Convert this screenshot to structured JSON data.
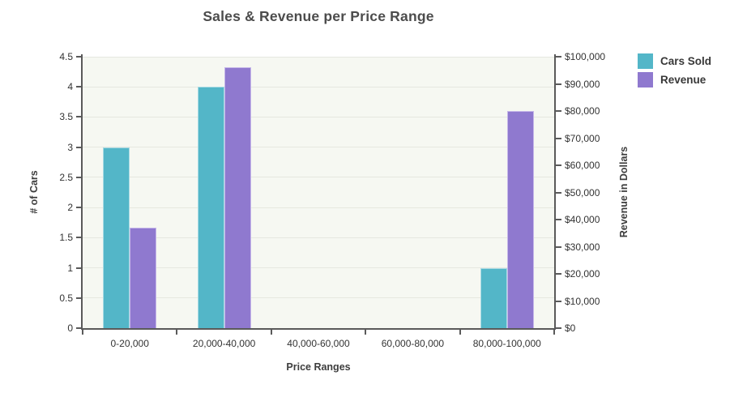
{
  "title": "Sales & Revenue per Price Range",
  "colors": {
    "cars_sold": "#53b6c8",
    "cars_sold_edge": "#a9dbe4",
    "revenue": "#8f79cf",
    "revenue_edge": "#c6b7e9",
    "plot_background": "#f6f8f2",
    "gridline": "#e6e8e0",
    "axis": "#5a5a5a",
    "text": "#3d3d3d"
  },
  "chart_data": {
    "type": "bar",
    "title": "Sales & Revenue per Price Range",
    "categories": [
      "0-20,000",
      "20,000-40,000",
      "40,000-60,000",
      "60,000-80,000",
      "80,000-100,000"
    ],
    "series": [
      {
        "name": "Cars Sold",
        "axis": "left",
        "color": "#53b6c8",
        "edge_color": "#a9dbe4",
        "values": [
          3,
          4,
          0,
          0,
          1
        ]
      },
      {
        "name": "Revenue",
        "axis": "right",
        "color": "#8f79cf",
        "edge_color": "#c6b7e9",
        "values": [
          37000,
          96000,
          0,
          0,
          80000
        ]
      }
    ],
    "xlabel": "Price Ranges",
    "left_axis": {
      "label": "# of Cars",
      "min": 0,
      "max": 4.5,
      "step": 0.5,
      "tick_labels": [
        "0",
        "0.5",
        "1",
        "1.5",
        "2",
        "2.5",
        "3",
        "3.5",
        "4",
        "4.5"
      ]
    },
    "right_axis": {
      "label": "Revenue in Dollars",
      "min": 0,
      "max": 100000,
      "step": 10000,
      "tick_labels": [
        "$0",
        "$10,000",
        "$20,000",
        "$30,000",
        "$40,000",
        "$50,000",
        "$60,000",
        "$70,000",
        "$80,000",
        "$90,000",
        "$100,000"
      ]
    },
    "grid": true,
    "legend_position": "top-right"
  }
}
